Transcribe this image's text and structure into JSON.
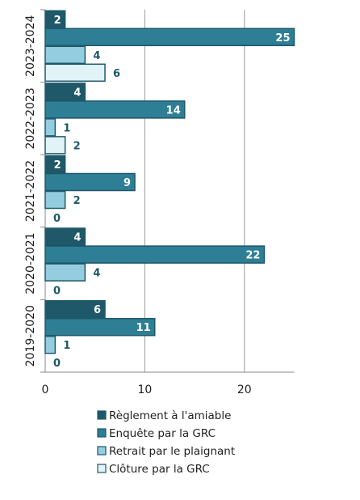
{
  "chart_data": {
    "type": "bar",
    "orientation": "horizontal",
    "categories": [
      "2023-2024",
      "2022-2023",
      "2021-2022",
      "2020-2021",
      "2019-2020"
    ],
    "series": [
      {
        "name": "Règlement à l'amiable",
        "values": [
          2,
          4,
          2,
          4,
          6
        ]
      },
      {
        "name": "Enquête par la GRC",
        "values": [
          25,
          14,
          9,
          22,
          11
        ]
      },
      {
        "name": "Retrait par le plaignant",
        "values": [
          4,
          1,
          2,
          4,
          1
        ]
      },
      {
        "name": "Clôture par la GRC",
        "values": [
          6,
          2,
          0,
          0,
          0
        ]
      }
    ],
    "xlim": [
      0,
      25
    ],
    "xticks": [
      0,
      10,
      20
    ],
    "grid": "vertical",
    "legend_position": "bottom",
    "colors": [
      "#1e5869",
      "#2e7e96",
      "#94cde0",
      "#e2f3f8"
    ],
    "label_colors": {
      "inside": "#ffffff",
      "outside": "#1e5869"
    },
    "edge_color": "#1e5869",
    "gridline_color": "#9a9a9a",
    "axis_color": "#8a8a8a",
    "xlabel": "",
    "ylabel": "",
    "title": ""
  }
}
